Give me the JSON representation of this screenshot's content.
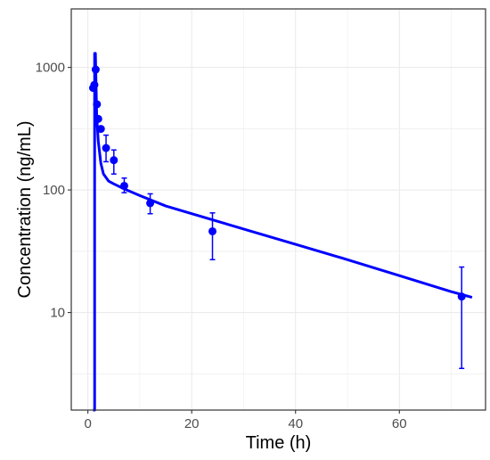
{
  "chart_data": {
    "type": "scatter",
    "title": "",
    "xlabel": "Time (h)",
    "ylabel": "Concentration (ng/mL)",
    "x_range": [
      -3.2,
      76.6
    ],
    "y_range": [
      1.6,
      3000
    ],
    "y_scale": "log10",
    "x_ticks": [
      0,
      20,
      40,
      60
    ],
    "x_tick_labels": [
      "0",
      "20",
      "40",
      "60"
    ],
    "y_ticks": [
      10,
      100,
      1000
    ],
    "y_tick_labels": [
      "10",
      "100",
      "1000"
    ],
    "grid": true,
    "legend": "none",
    "color": "#0000ff",
    "series": [
      {
        "type": "scatter_errorbar",
        "points": [
          {
            "x": 1.0,
            "y": 680,
            "ylow": 680,
            "yhigh": 680
          },
          {
            "x": 1.25,
            "y": 720,
            "ylow": 720,
            "yhigh": 720
          },
          {
            "x": 1.5,
            "y": 960,
            "ylow": 960,
            "yhigh": 960
          },
          {
            "x": 1.75,
            "y": 500,
            "ylow": 500,
            "yhigh": 500
          },
          {
            "x": 2.0,
            "y": 380,
            "ylow": 380,
            "yhigh": 380
          },
          {
            "x": 2.5,
            "y": 315,
            "ylow": 315,
            "yhigh": 315
          },
          {
            "x": 3.5,
            "y": 220,
            "ylow": 170,
            "yhigh": 280
          },
          {
            "x": 5.0,
            "y": 175,
            "ylow": 135,
            "yhigh": 212
          },
          {
            "x": 7.0,
            "y": 108,
            "ylow": 95,
            "yhigh": 125
          },
          {
            "x": 12.0,
            "y": 78,
            "ylow": 64,
            "yhigh": 93
          },
          {
            "x": 24.0,
            "y": 46,
            "ylow": 27,
            "yhigh": 65
          },
          {
            "x": 72.0,
            "y": 13.5,
            "ylow": 3.5,
            "yhigh": 23.5
          }
        ]
      },
      {
        "type": "line",
        "points": [
          {
            "x": 1.0,
            "y": 1.6
          },
          {
            "x": 1.3,
            "y": 1.6
          },
          {
            "x": 1.3,
            "y": 1300
          },
          {
            "x": 1.45,
            "y": 1300
          },
          {
            "x": 1.55,
            "y": 800
          },
          {
            "x": 1.7,
            "y": 400
          },
          {
            "x": 2.0,
            "y": 250
          },
          {
            "x": 2.5,
            "y": 165
          },
          {
            "x": 3.0,
            "y": 135
          },
          {
            "x": 4.0,
            "y": 118
          },
          {
            "x": 5.0,
            "y": 112
          },
          {
            "x": 7.0,
            "y": 102
          },
          {
            "x": 10.0,
            "y": 90
          },
          {
            "x": 15.0,
            "y": 74
          },
          {
            "x": 20.0,
            "y": 64
          },
          {
            "x": 30.0,
            "y": 48
          },
          {
            "x": 40.0,
            "y": 36
          },
          {
            "x": 50.0,
            "y": 27
          },
          {
            "x": 60.0,
            "y": 20
          },
          {
            "x": 70.0,
            "y": 14.8
          },
          {
            "x": 74.0,
            "y": 13.3
          }
        ]
      }
    ]
  }
}
